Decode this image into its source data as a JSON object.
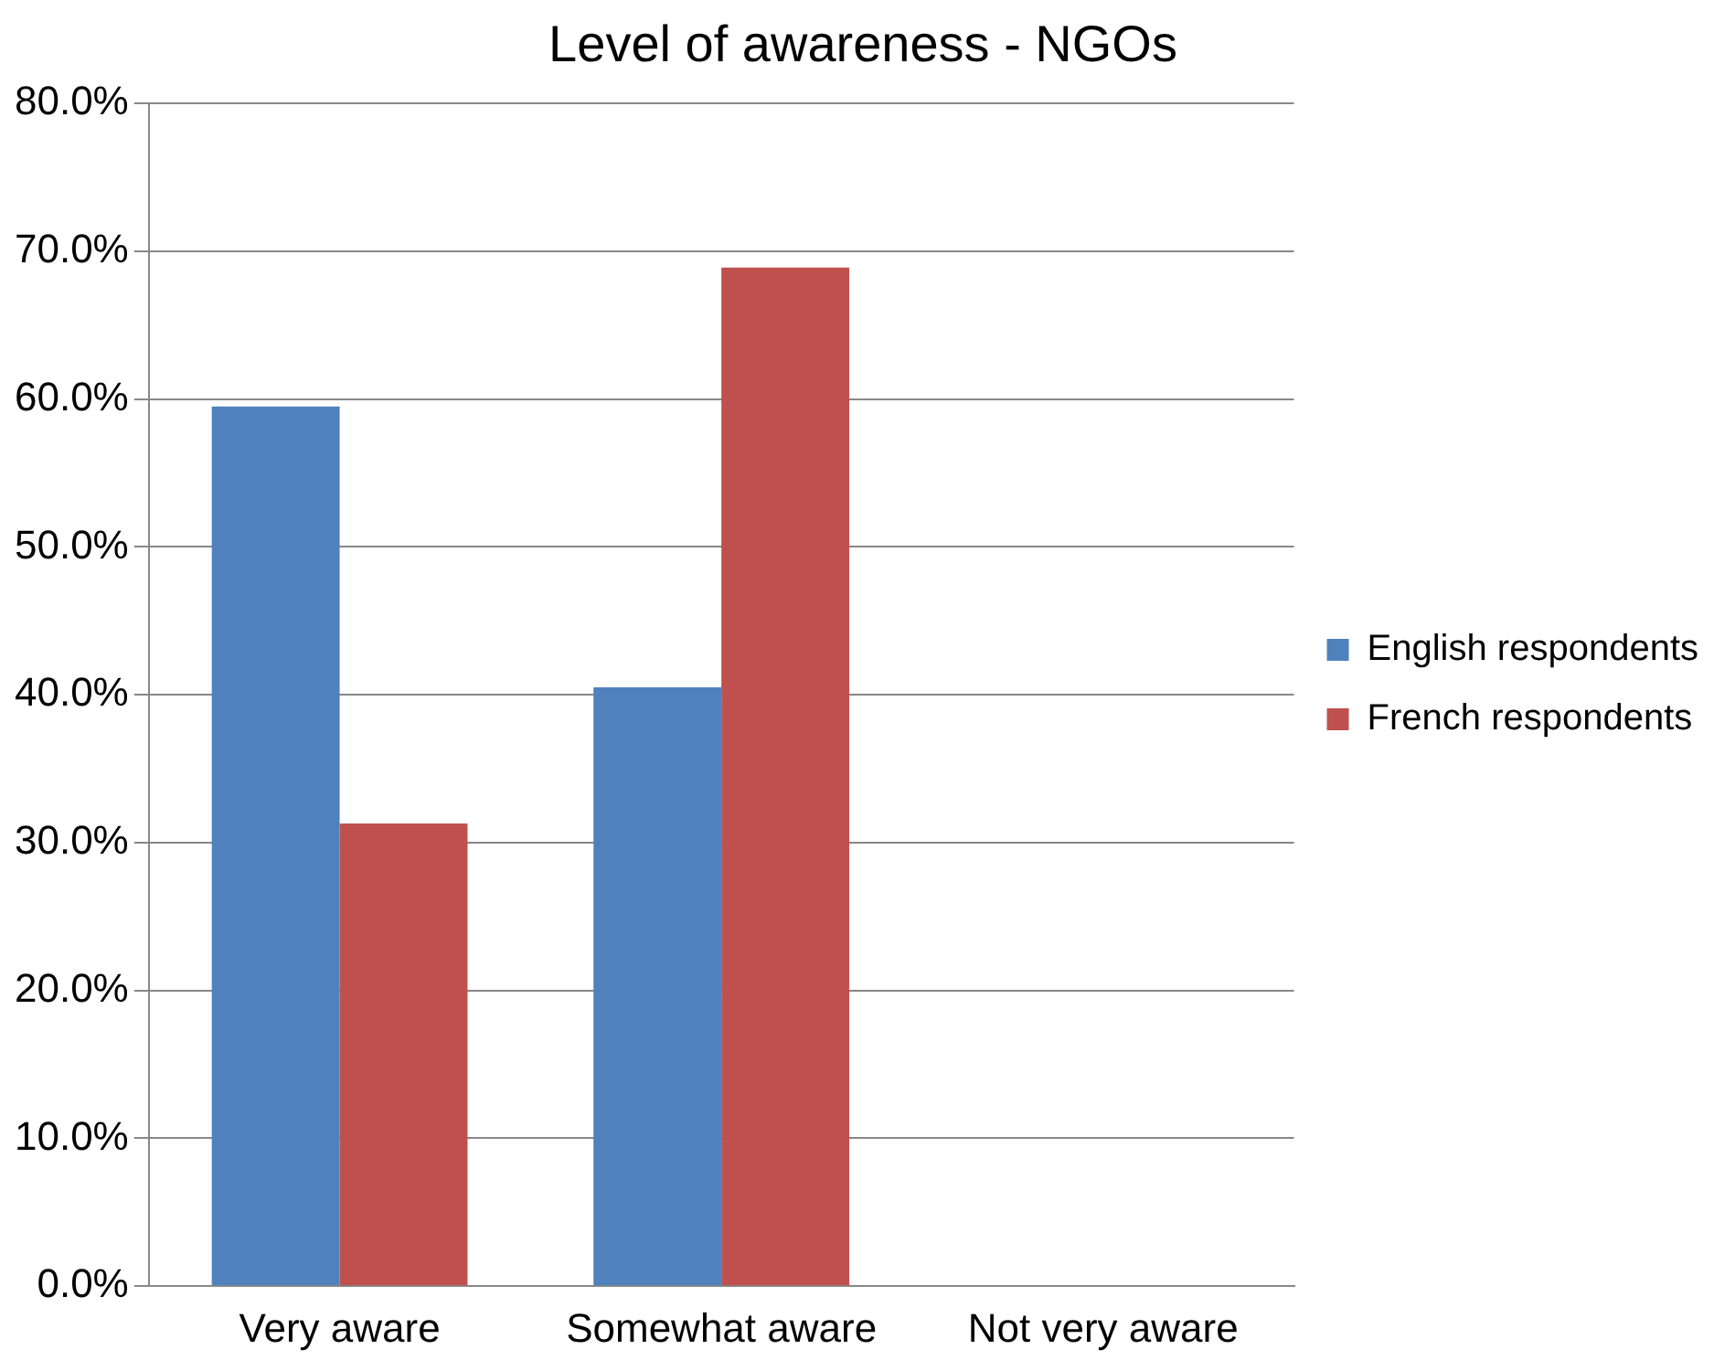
{
  "chart_data": {
    "type": "bar",
    "title": "Level of awareness - NGOs",
    "categories": [
      "Very aware",
      "Somewhat aware",
      "Not very aware"
    ],
    "series": [
      {
        "name": "English respondents",
        "color": "#4f81bd",
        "values": [
          59.5,
          40.5,
          0
        ]
      },
      {
        "name": "French respondents",
        "color": "#c0504d",
        "values": [
          31.3,
          68.9,
          0
        ]
      }
    ],
    "ylim": [
      0,
      80
    ],
    "yticks": [
      {
        "value": 0,
        "label": "0.0%"
      },
      {
        "value": 10,
        "label": "10.0%"
      },
      {
        "value": 20,
        "label": "20.0%"
      },
      {
        "value": 30,
        "label": "30.0%"
      },
      {
        "value": 40,
        "label": "40.0%"
      },
      {
        "value": 50,
        "label": "50.0%"
      },
      {
        "value": 60,
        "label": "60.0%"
      },
      {
        "value": 70,
        "label": "70.0%"
      },
      {
        "value": 80,
        "label": "80.0%"
      }
    ],
    "grid": "y",
    "legend": "right"
  }
}
